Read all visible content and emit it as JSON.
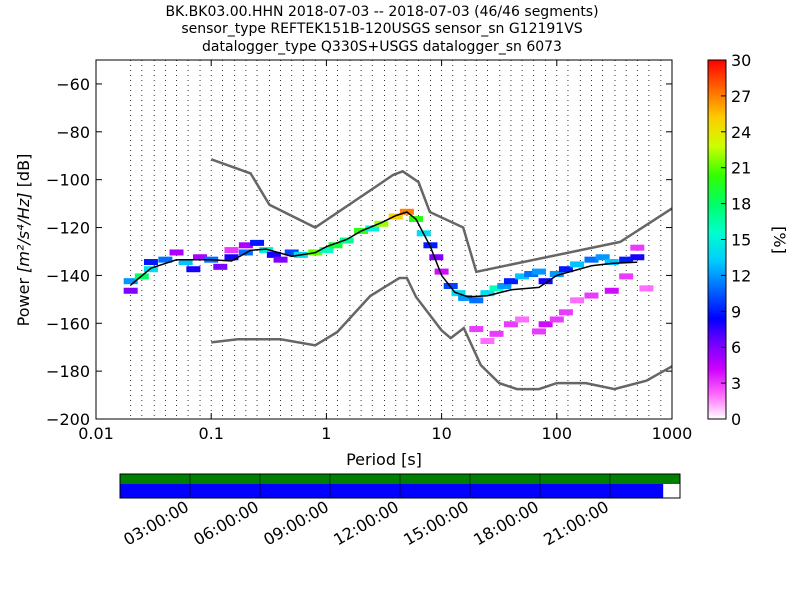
{
  "chart_data": {
    "type": "heatmap",
    "title_lines": [
      "BK.BK03.00.HHN   2018-07-03 -- 2018-07-03  (46/46 segments)",
      "sensor_type REFTEK151B-120USGS sensor_sn G12191VS",
      "datalogger_type Q330S+USGS datalogger_sn 6073"
    ],
    "xlabel": "Period [s]",
    "ylabel_prefix": "Power ",
    "ylabel_math": "[m²/s⁴/Hz]",
    "ylabel_suffix": " [dB]",
    "x_scale": "log",
    "xlim": [
      0.01,
      1000
    ],
    "ylim": [
      -200,
      -50
    ],
    "x_ticks": [
      {
        "value": 0.01,
        "label": "0.01"
      },
      {
        "value": 0.1,
        "label": "0.1"
      },
      {
        "value": 1,
        "label": "1"
      },
      {
        "value": 10,
        "label": "10"
      },
      {
        "value": 100,
        "label": "100"
      },
      {
        "value": 1000,
        "label": "1000"
      }
    ],
    "y_ticks": [
      {
        "value": -60,
        "label": "−60"
      },
      {
        "value": -80,
        "label": "−80"
      },
      {
        "value": -100,
        "label": "−100"
      },
      {
        "value": -120,
        "label": "−120"
      },
      {
        "value": -140,
        "label": "−140"
      },
      {
        "value": -160,
        "label": "−160"
      },
      {
        "value": -180,
        "label": "−180"
      },
      {
        "value": -200,
        "label": "−200"
      }
    ],
    "grid": "dotted vertical at period bins",
    "noise_models": [
      {
        "name": "NHNM",
        "points": [
          [
            0.1,
            -91.5
          ],
          [
            0.22,
            -97.4
          ],
          [
            0.32,
            -110.5
          ],
          [
            0.8,
            -120
          ],
          [
            3.8,
            -98
          ],
          [
            4.6,
            -96.5
          ],
          [
            6.3,
            -101
          ],
          [
            7.9,
            -113.5
          ],
          [
            15.4,
            -120
          ],
          [
            20,
            -138.5
          ],
          [
            354.8,
            -126
          ],
          [
            1000,
            -112
          ]
        ]
      },
      {
        "name": "NLNM",
        "points": [
          [
            0.1,
            -168
          ],
          [
            0.17,
            -166.7
          ],
          [
            0.4,
            -166.7
          ],
          [
            0.8,
            -169.2
          ],
          [
            1.24,
            -163.7
          ],
          [
            2.4,
            -148.6
          ],
          [
            4.3,
            -141.1
          ],
          [
            5.0,
            -141.1
          ],
          [
            6.0,
            -149
          ],
          [
            10,
            -163
          ],
          [
            12,
            -166.2
          ],
          [
            15.6,
            -162
          ],
          [
            21.9,
            -177.5
          ],
          [
            31.6,
            -185
          ],
          [
            45,
            -187.5
          ],
          [
            70,
            -187.5
          ],
          [
            100,
            -185
          ],
          [
            179,
            -185
          ],
          [
            316,
            -187.5
          ],
          [
            600,
            -184
          ],
          [
            1000,
            -178
          ]
        ]
      }
    ],
    "mean_curve": [
      [
        0.02,
        -144
      ],
      [
        0.03,
        -137
      ],
      [
        0.05,
        -133.5
      ],
      [
        0.1,
        -133.5
      ],
      [
        0.15,
        -134
      ],
      [
        0.22,
        -129.5
      ],
      [
        0.3,
        -129
      ],
      [
        0.5,
        -132
      ],
      [
        0.8,
        -130.5
      ],
      [
        1,
        -128
      ],
      [
        1.5,
        -125
      ],
      [
        2,
        -121.5
      ],
      [
        3,
        -118
      ],
      [
        4,
        -115
      ],
      [
        5,
        -113.5
      ],
      [
        6,
        -116.5
      ],
      [
        8,
        -128
      ],
      [
        10,
        -140
      ],
      [
        13,
        -147
      ],
      [
        17,
        -149
      ],
      [
        25,
        -148.5
      ],
      [
        40,
        -146
      ],
      [
        70,
        -145
      ],
      [
        100,
        -140
      ],
      [
        200,
        -136
      ],
      [
        300,
        -135
      ],
      [
        500,
        -134.5
      ]
    ],
    "histogram_cells": [
      [
        0.02,
        -142,
        12
      ],
      [
        0.02,
        -146,
        6
      ],
      [
        0.025,
        -140,
        18
      ],
      [
        0.03,
        -134,
        9
      ],
      [
        0.03,
        -137,
        14
      ],
      [
        0.04,
        -133,
        11
      ],
      [
        0.05,
        -130,
        5
      ],
      [
        0.06,
        -134,
        13
      ],
      [
        0.07,
        -137,
        8
      ],
      [
        0.08,
        -132,
        5
      ],
      [
        0.1,
        -133,
        11
      ],
      [
        0.12,
        -136,
        6
      ],
      [
        0.15,
        -129,
        3
      ],
      [
        0.15,
        -132,
        8
      ],
      [
        0.2,
        -127,
        5
      ],
      [
        0.2,
        -130,
        11
      ],
      [
        0.25,
        -126,
        9
      ],
      [
        0.3,
        -129,
        15
      ],
      [
        0.35,
        -131,
        8
      ],
      [
        0.4,
        -133,
        6
      ],
      [
        0.5,
        -130,
        10
      ],
      [
        0.6,
        -131,
        14
      ],
      [
        0.8,
        -130,
        21
      ],
      [
        1,
        -129,
        16
      ],
      [
        1.2,
        -127,
        19
      ],
      [
        1.5,
        -125,
        17
      ],
      [
        2,
        -121,
        20
      ],
      [
        2.5,
        -120,
        15
      ],
      [
        3,
        -118,
        22
      ],
      [
        4,
        -115,
        25
      ],
      [
        5,
        -113,
        27
      ],
      [
        6,
        -116,
        20
      ],
      [
        7,
        -122,
        14
      ],
      [
        8,
        -127,
        9
      ],
      [
        9,
        -132,
        6
      ],
      [
        10,
        -138,
        4
      ],
      [
        12,
        -144,
        10
      ],
      [
        14,
        -147,
        14
      ],
      [
        16,
        -149,
        12
      ],
      [
        20,
        -150,
        11
      ],
      [
        25,
        -147,
        14
      ],
      [
        30,
        -145,
        16
      ],
      [
        35,
        -144,
        12
      ],
      [
        40,
        -142,
        9
      ],
      [
        50,
        -140,
        13
      ],
      [
        60,
        -139,
        11
      ],
      [
        70,
        -138,
        12
      ],
      [
        80,
        -142,
        8
      ],
      [
        100,
        -139,
        12
      ],
      [
        120,
        -137,
        9
      ],
      [
        150,
        -135,
        13
      ],
      [
        200,
        -133,
        11
      ],
      [
        250,
        -132,
        12
      ],
      [
        300,
        -134,
        13
      ],
      [
        400,
        -133,
        9
      ],
      [
        500,
        -132,
        8
      ],
      [
        20,
        -162,
        3
      ],
      [
        25,
        -167,
        2
      ],
      [
        30,
        -164,
        3
      ],
      [
        40,
        -160,
        3
      ],
      [
        50,
        -158,
        2
      ],
      [
        70,
        -163,
        3
      ],
      [
        80,
        -160,
        4
      ],
      [
        100,
        -158,
        3
      ],
      [
        120,
        -155,
        3
      ],
      [
        150,
        -150,
        2
      ],
      [
        200,
        -148,
        3
      ],
      [
        300,
        -146,
        4
      ],
      [
        400,
        -140,
        3
      ],
      [
        500,
        -128,
        3
      ],
      [
        600,
        -145,
        2
      ]
    ],
    "colorbar": {
      "label": "[%]",
      "min": 0,
      "max": 30,
      "ticks": [
        "0",
        "3",
        "6",
        "9",
        "12",
        "15",
        "18",
        "21",
        "24",
        "27",
        "30"
      ]
    },
    "timeline": {
      "coverage_data_fraction": 0.97,
      "tick_labels": [
        "03:00:00",
        "06:00:00",
        "09:00:00",
        "12:00:00",
        "15:00:00",
        "18:00:00",
        "21:00:00"
      ],
      "tick_hours": [
        3,
        6,
        9,
        12,
        15,
        18,
        21
      ],
      "span_hours": 24,
      "top_color": "#008000",
      "data_color": "#0000ff"
    },
    "colors": {
      "noise_model": "#666666",
      "mean_line": "#000000"
    }
  }
}
